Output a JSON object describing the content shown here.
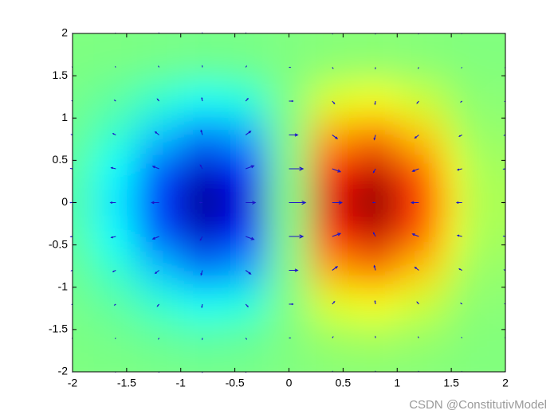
{
  "chart_data": {
    "type": "quiver",
    "x": [
      -2,
      -1.6,
      -1.2,
      -0.8,
      -0.4,
      0,
      0.4,
      0.8,
      1.2,
      1.6,
      2
    ],
    "y": [
      -2,
      -1.6,
      -1.2,
      -0.8,
      -0.4,
      0,
      0.4,
      0.8,
      1.2,
      1.6,
      2
    ],
    "z": [
      [
        -0.001,
        -0.002,
        -0.005,
        -0.008,
        -0.006,
        0,
        0.006,
        0.008,
        0.005,
        0.002,
        0.001
      ],
      [
        -0.003,
        -0.01,
        -0.022,
        -0.033,
        -0.026,
        0,
        0.026,
        0.033,
        0.022,
        0.01,
        0.003
      ],
      [
        -0.009,
        -0.029,
        -0.067,
        -0.1,
        -0.081,
        0,
        0.081,
        0.1,
        0.067,
        0.029,
        0.009
      ],
      [
        -0.019,
        -0.065,
        -0.15,
        -0.222,
        -0.18,
        0,
        0.18,
        0.222,
        0.15,
        0.065,
        0.019
      ],
      [
        -0.031,
        -0.105,
        -0.242,
        -0.359,
        -0.29,
        0,
        0.29,
        0.359,
        0.242,
        0.105,
        0.031
      ],
      [
        -0.037,
        -0.124,
        -0.284,
        -0.422,
        -0.341,
        0,
        0.341,
        0.422,
        0.284,
        0.124,
        0.037
      ],
      [
        -0.031,
        -0.105,
        -0.242,
        -0.359,
        -0.29,
        0,
        0.29,
        0.359,
        0.242,
        0.105,
        0.031
      ],
      [
        -0.019,
        -0.065,
        -0.15,
        -0.222,
        -0.18,
        0,
        0.18,
        0.222,
        0.15,
        0.065,
        0.019
      ],
      [
        -0.009,
        -0.029,
        -0.067,
        -0.1,
        -0.081,
        0,
        0.081,
        0.1,
        0.067,
        0.029,
        0.009
      ],
      [
        -0.003,
        -0.01,
        -0.022,
        -0.033,
        -0.026,
        0,
        0.026,
        0.033,
        0.022,
        0.01,
        0.003
      ],
      [
        -0.001,
        -0.002,
        -0.005,
        -0.008,
        -0.006,
        0,
        0.006,
        0.008,
        0.005,
        0.002,
        0.001
      ]
    ],
    "u": [
      [
        -0.002,
        -0.006,
        -0.008,
        -0.003,
        0.011,
        0.018,
        0.011,
        -0.003,
        -0.008,
        -0.006,
        -0.002
      ],
      [
        -0.01,
        -0.025,
        -0.034,
        -0.011,
        0.045,
        0.077,
        0.045,
        -0.011,
        -0.034,
        -0.025,
        -0.01
      ],
      [
        -0.03,
        -0.075,
        -0.106,
        -0.035,
        0.137,
        0.237,
        0.137,
        -0.035,
        -0.106,
        -0.075,
        -0.03
      ],
      [
        -0.068,
        -0.168,
        -0.235,
        -0.078,
        0.306,
        0.527,
        0.306,
        -0.078,
        -0.235,
        -0.168,
        -0.068
      ],
      [
        -0.109,
        -0.271,
        -0.38,
        -0.126,
        0.494,
        0.852,
        0.494,
        -0.126,
        -0.38,
        -0.271,
        -0.109
      ],
      [
        -0.128,
        -0.319,
        -0.445,
        -0.148,
        0.579,
        1,
        0.579,
        -0.148,
        -0.445,
        -0.319,
        -0.128
      ],
      [
        -0.109,
        -0.271,
        -0.38,
        -0.126,
        0.494,
        0.852,
        0.494,
        -0.126,
        -0.38,
        -0.271,
        -0.109
      ],
      [
        -0.068,
        -0.168,
        -0.235,
        -0.078,
        0.306,
        0.527,
        0.306,
        -0.078,
        -0.235,
        -0.168,
        -0.068
      ],
      [
        -0.03,
        -0.075,
        -0.106,
        -0.035,
        0.137,
        0.237,
        0.137,
        -0.035,
        -0.106,
        -0.075,
        -0.03
      ],
      [
        -0.01,
        -0.025,
        -0.034,
        -0.011,
        0.045,
        0.077,
        0.045,
        -0.011,
        -0.034,
        -0.025,
        -0.01
      ],
      [
        -0.002,
        -0.006,
        -0.008,
        -0.003,
        0.011,
        0.018,
        0.011,
        -0.003,
        -0.008,
        -0.006,
        -0.002
      ]
    ],
    "v": [
      [
        -0.003,
        -0.009,
        -0.021,
        -0.031,
        -0.025,
        0,
        0.025,
        0.031,
        0.021,
        0.009,
        0.003
      ],
      [
        -0.009,
        -0.031,
        -0.07,
        -0.104,
        -0.084,
        0,
        0.084,
        0.104,
        0.07,
        0.031,
        0.009
      ],
      [
        -0.021,
        -0.07,
        -0.162,
        -0.24,
        -0.194,
        0,
        0.194,
        0.24,
        0.162,
        0.07,
        0.021
      ],
      [
        -0.031,
        -0.104,
        -0.24,
        -0.356,
        -0.288,
        0,
        0.288,
        0.356,
        0.24,
        0.104,
        0.031
      ],
      [
        -0.025,
        -0.084,
        -0.194,
        -0.288,
        -0.232,
        0,
        0.232,
        0.288,
        0.194,
        0.084,
        0.025
      ],
      [
        0,
        0,
        0,
        0,
        0,
        0,
        0,
        0,
        0,
        0,
        0
      ],
      [
        0.025,
        0.084,
        0.194,
        0.288,
        0.232,
        0,
        -0.232,
        -0.288,
        -0.194,
        -0.084,
        -0.025
      ],
      [
        0.031,
        0.104,
        0.24,
        0.356,
        0.288,
        0,
        -0.288,
        -0.356,
        -0.24,
        -0.104,
        -0.031
      ],
      [
        0.021,
        0.07,
        0.162,
        0.24,
        0.194,
        0,
        -0.194,
        -0.24,
        -0.162,
        -0.07,
        -0.021
      ],
      [
        0.009,
        0.031,
        0.07,
        0.104,
        0.084,
        0,
        -0.084,
        -0.104,
        -0.07,
        -0.031,
        -0.009
      ],
      [
        0.003,
        0.009,
        0.021,
        0.031,
        0.025,
        0,
        -0.025,
        -0.031,
        -0.021,
        -0.009,
        -0.003
      ]
    ],
    "xlim": [
      -2,
      2
    ],
    "ylim": [
      -2,
      2
    ],
    "xticks": [
      -2,
      -1.5,
      -1,
      -0.5,
      0,
      0.5,
      1,
      1.5,
      2
    ],
    "yticks": [
      -2,
      -1.5,
      -1,
      -0.5,
      0,
      0.5,
      1,
      1.5,
      2
    ],
    "colormap": "jet",
    "arrow_color": "#1a14c8",
    "watermark": "CSDN @ConstitutivModel"
  }
}
